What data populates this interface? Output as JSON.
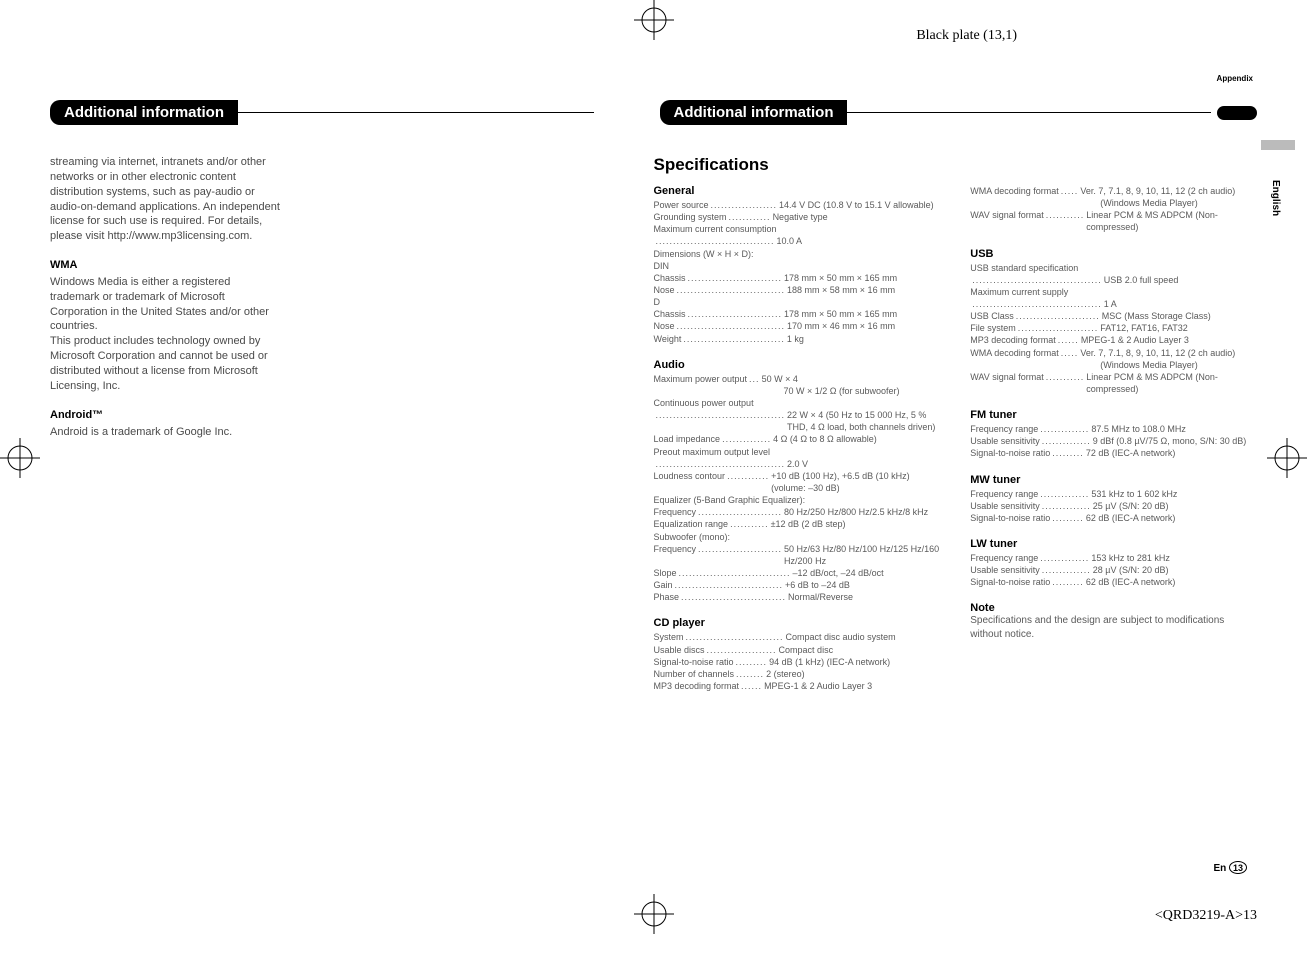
{
  "plate": "Black plate (13,1)",
  "appendix": "Appendix",
  "section_title": "Additional information",
  "left": {
    "para": "streaming via internet, intranets and/or other networks or in other electronic content distribution systems, such as pay-audio or audio-on-demand applications. An independent license for such use is required. For details, please visit http://www.mp3licensing.com.",
    "wma_title": "WMA",
    "wma_body": "Windows Media is either a registered trademark or trademark of Microsoft Corporation in the United States and/or other countries.\nThis product includes technology owned by Microsoft Corporation and cannot be used or distributed without a license from Microsoft Licensing, Inc.",
    "android_title": "Android™",
    "android_body": "Android is a trademark of Google Inc."
  },
  "specs_title": "Specifications",
  "groups": {
    "general": {
      "title": "General",
      "lines": [
        {
          "label": "Power source",
          "dots": " ...................",
          "value": "14.4 V DC (10.8 V to 15.1 V allowable)"
        },
        {
          "label": "Grounding system",
          "dots": " ............",
          "value": "Negative type"
        },
        {
          "label": "Maximum current consumption",
          "dots": "",
          "value": ""
        },
        {
          "label": "",
          "dots": "..................................",
          "value": " 10.0 A"
        },
        {
          "label": "Dimensions (W × H × D):",
          "dots": "",
          "value": ""
        },
        {
          "label": "DIN",
          "dots": "",
          "value": ""
        },
        {
          "label": "Chassis",
          "dots": " ...........................",
          "value": "178 mm × 50 mm × 165 mm"
        },
        {
          "label": "Nose",
          "dots": " ...............................",
          "value": "188 mm × 58 mm × 16 mm"
        },
        {
          "label": "D",
          "dots": "",
          "value": ""
        },
        {
          "label": "Chassis",
          "dots": " ...........................",
          "value": "178 mm × 50 mm × 165 mm"
        },
        {
          "label": "Nose",
          "dots": " ...............................",
          "value": "170 mm × 46 mm × 16 mm"
        },
        {
          "label": "Weight",
          "dots": " .............................",
          "value": "1 kg"
        }
      ]
    },
    "audio": {
      "title": "Audio",
      "lines": [
        {
          "label": "Maximum power output",
          "dots": " ...",
          "value": "50 W × 4"
        },
        {
          "cont": "70 W × 1/2 Ω (for subwoofer)"
        },
        {
          "label": "Continuous power output",
          "dots": "",
          "value": ""
        },
        {
          "label": "",
          "dots": ".....................................",
          "value": " 22 W × 4 (50 Hz to 15 000 Hz, 5 % THD, 4 Ω load, both channels driven)"
        },
        {
          "label": "Load impedance",
          "dots": " ..............",
          "value": "4 Ω (4 Ω to 8 Ω allowable)"
        },
        {
          "label": "Preout maximum output level",
          "dots": "",
          "value": ""
        },
        {
          "label": "",
          "dots": ".....................................",
          "value": " 2.0 V"
        },
        {
          "label": "Loudness contour",
          "dots": " ............",
          "value": "+10 dB (100 Hz), +6.5 dB (10 kHz) (volume: –30 dB)"
        },
        {
          "label": "Equalizer (5-Band Graphic Equalizer):",
          "dots": "",
          "value": ""
        },
        {
          "label": "Frequency",
          "dots": " ........................",
          "value": "80 Hz/250 Hz/800 Hz/2.5 kHz/8 kHz"
        },
        {
          "label": "Equalization range",
          "dots": " ...........",
          "value": "±12 dB (2 dB step)"
        },
        {
          "label": "Subwoofer (mono):",
          "dots": "",
          "value": ""
        },
        {
          "label": "Frequency",
          "dots": " ........................",
          "value": "50 Hz/63 Hz/80 Hz/100 Hz/125 Hz/160 Hz/200 Hz"
        },
        {
          "label": "Slope",
          "dots": " ................................",
          "value": "–12 dB/oct, –24 dB/oct"
        },
        {
          "label": "Gain",
          "dots": "  ...............................",
          "value": "+6 dB to –24 dB"
        },
        {
          "label": "Phase",
          "dots": " ..............................",
          "value": "Normal/Reverse"
        }
      ]
    },
    "cd": {
      "title": "CD player",
      "lines": [
        {
          "label": "System",
          "dots": " ............................",
          "value": "Compact disc audio system"
        },
        {
          "label": "Usable discs",
          "dots": " ....................",
          "value": "Compact disc"
        },
        {
          "label": "Signal-to-noise ratio",
          "dots": " .........",
          "value": "94 dB (1 kHz) (IEC-A network)"
        },
        {
          "label": "Number of channels",
          "dots": " ........",
          "value": "2 (stereo)"
        },
        {
          "label": "MP3 decoding format",
          "dots": " ......",
          "value": "MPEG-1 & 2 Audio Layer 3"
        }
      ]
    },
    "cd2": {
      "lines": [
        {
          "label": "WMA decoding format",
          "dots": " .....",
          "value": "Ver. 7, 7.1, 8, 9, 10, 11, 12 (2 ch audio)"
        },
        {
          "cont": "(Windows Media Player)"
        },
        {
          "label": "WAV signal format",
          "dots": " ...........",
          "value": "Linear PCM & MS ADPCM (Non-compressed)"
        }
      ]
    },
    "usb": {
      "title": "USB",
      "lines": [
        {
          "label": "USB standard specification",
          "dots": "",
          "value": ""
        },
        {
          "label": "",
          "dots": ".....................................",
          "value": " USB 2.0 full speed"
        },
        {
          "label": "Maximum current supply",
          "dots": "",
          "value": ""
        },
        {
          "label": "",
          "dots": ".....................................",
          "value": " 1 A"
        },
        {
          "label": "USB Class",
          "dots": " ........................",
          "value": "MSC (Mass Storage Class)"
        },
        {
          "label": "File system",
          "dots": " .......................",
          "value": "FAT12, FAT16, FAT32"
        },
        {
          "label": "MP3 decoding format",
          "dots": " ......",
          "value": "MPEG-1 & 2 Audio Layer 3"
        },
        {
          "label": "WMA decoding format",
          "dots": " .....",
          "value": "Ver. 7, 7.1, 8, 9, 10, 11, 12 (2 ch audio)"
        },
        {
          "cont": "(Windows Media Player)"
        },
        {
          "label": "WAV signal format",
          "dots": " ...........",
          "value": "Linear PCM & MS ADPCM (Non-compressed)"
        }
      ]
    },
    "fm": {
      "title": "FM tuner",
      "lines": [
        {
          "label": "Frequency range",
          "dots": " ..............",
          "value": "87.5 MHz to 108.0 MHz"
        },
        {
          "label": "Usable sensitivity",
          "dots": " ..............",
          "value": "9 dBf (0.8 µV/75 Ω, mono, S/N: 30 dB)"
        },
        {
          "label": "Signal-to-noise ratio",
          "dots": " .........",
          "value": "72 dB (IEC-A network)"
        }
      ]
    },
    "mw": {
      "title": "MW tuner",
      "lines": [
        {
          "label": "Frequency range",
          "dots": " ..............",
          "value": "531 kHz to 1 602 kHz"
        },
        {
          "label": "Usable sensitivity",
          "dots": " ..............",
          "value": "25 µV (S/N: 20 dB)"
        },
        {
          "label": "Signal-to-noise ratio",
          "dots": " .........",
          "value": "62 dB (IEC-A network)"
        }
      ]
    },
    "lw": {
      "title": "LW tuner",
      "lines": [
        {
          "label": "Frequency range",
          "dots": " ..............",
          "value": "153 kHz to 281 kHz"
        },
        {
          "label": "Usable sensitivity",
          "dots": " ..............",
          "value": "28 µV (S/N: 20 dB)"
        },
        {
          "label": "Signal-to-noise ratio",
          "dots": " .........",
          "value": "62 dB (IEC-A network)"
        }
      ]
    }
  },
  "note": {
    "title": "Note",
    "body": "Specifications and the design are subject to modifications without notice."
  },
  "side_lang": "English",
  "page_lang": "En",
  "page_num": "13",
  "footer": "<QRD3219-A>13"
}
